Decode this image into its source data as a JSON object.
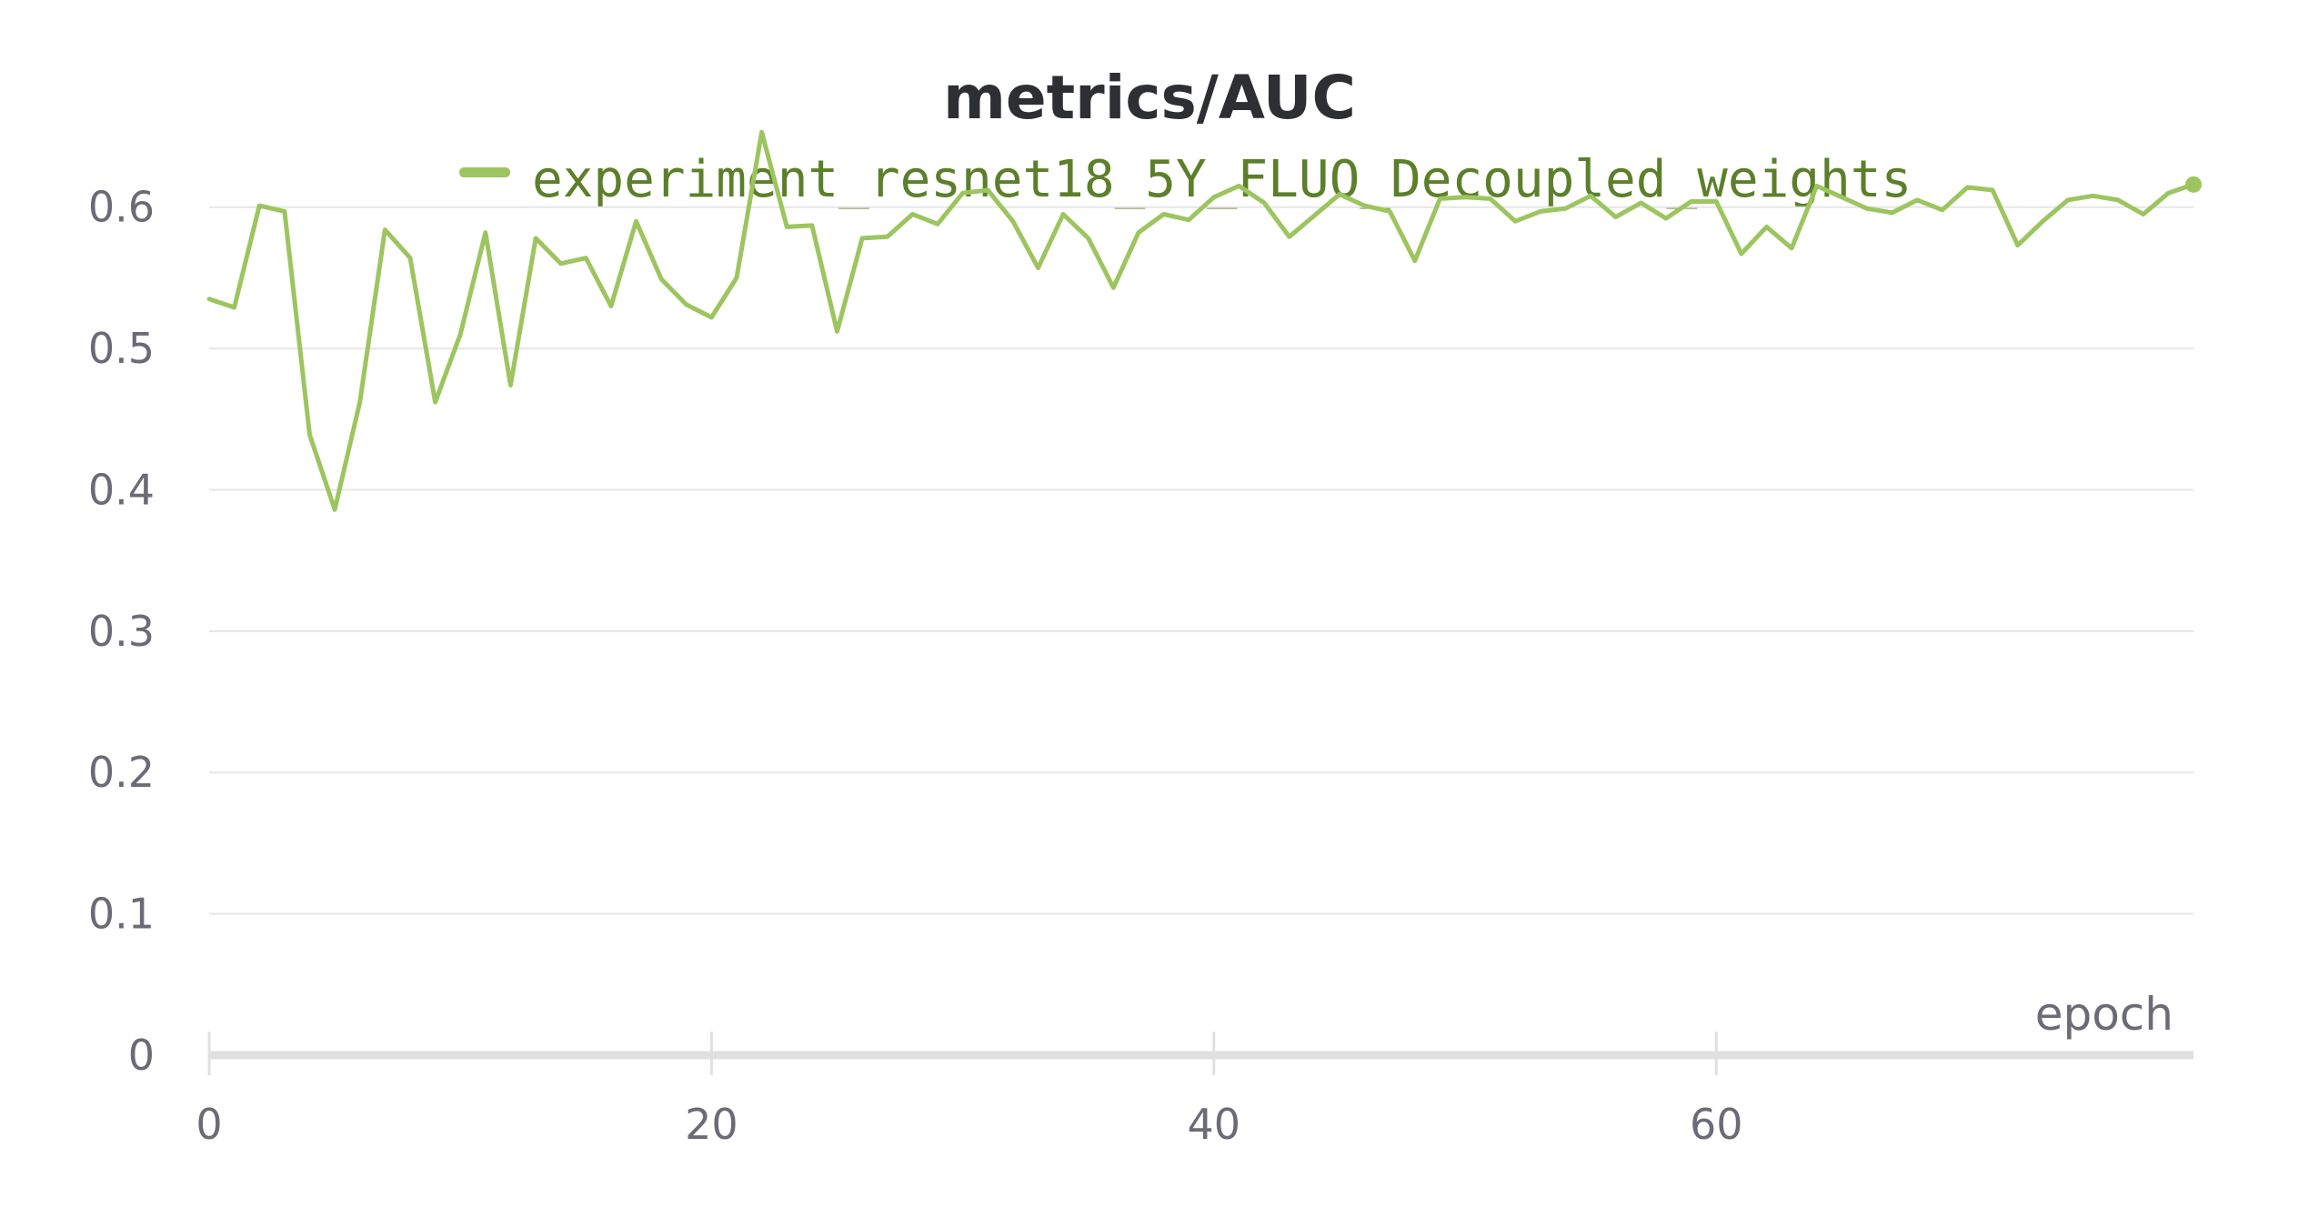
{
  "colors": {
    "series": "#9cc55f",
    "legend_text": "#5c7f2a",
    "grid": "#e6e6e6",
    "axis": "#e0e0e0",
    "tick_text": "#6b6b76",
    "title": "#2d2f33"
  },
  "chart_data": {
    "type": "line",
    "title": "metrics/AUC",
    "xlabel": "epoch",
    "ylabel": "",
    "xlim": [
      0,
      79
    ],
    "ylim": [
      0,
      0.65
    ],
    "x_ticks": [
      0,
      20,
      40,
      60
    ],
    "x_tick_labels": [
      "0",
      "20",
      "40",
      "60"
    ],
    "y_ticks": [
      0,
      0.1,
      0.2,
      0.3,
      0.4,
      0.5,
      0.6
    ],
    "y_tick_labels": [
      "0",
      "0.1",
      "0.2",
      "0.3",
      "0.4",
      "0.5",
      "0.6"
    ],
    "grid": true,
    "legend_position": "top-center",
    "series": [
      {
        "name": "experiment_resnet18_5Y_FLUO_Decoupled_weights",
        "x": [
          0,
          1,
          2,
          3,
          4,
          5,
          6,
          7,
          8,
          9,
          10,
          11,
          12,
          13,
          14,
          15,
          16,
          17,
          18,
          19,
          20,
          21,
          22,
          23,
          24,
          25,
          26,
          27,
          28,
          29,
          30,
          31,
          32,
          33,
          34,
          35,
          36,
          37,
          38,
          39,
          40,
          41,
          42,
          43,
          44,
          45,
          46,
          47,
          48,
          49,
          50,
          51,
          52,
          53,
          54,
          55,
          56,
          57,
          58,
          59,
          60,
          61,
          62,
          63,
          64,
          65,
          66,
          67,
          68,
          69,
          70,
          71,
          72,
          73,
          74,
          75,
          76,
          77,
          78,
          79
        ],
        "values": [
          0.535,
          0.529,
          0.601,
          0.597,
          0.439,
          0.386,
          0.462,
          0.584,
          0.564,
          0.462,
          0.51,
          0.582,
          0.474,
          0.578,
          0.56,
          0.564,
          0.53,
          0.59,
          0.549,
          0.531,
          0.522,
          0.55,
          0.653,
          0.586,
          0.587,
          0.512,
          0.578,
          0.579,
          0.595,
          0.588,
          0.61,
          0.612,
          0.59,
          0.557,
          0.595,
          0.578,
          0.543,
          0.582,
          0.595,
          0.591,
          0.607,
          0.615,
          0.603,
          0.579,
          0.594,
          0.609,
          0.601,
          0.597,
          0.562,
          0.606,
          0.607,
          0.606,
          0.59,
          0.597,
          0.599,
          0.608,
          0.593,
          0.603,
          0.592,
          0.604,
          0.604,
          0.567,
          0.586,
          0.571,
          0.615,
          0.607,
          0.599,
          0.596,
          0.605,
          0.598,
          0.614,
          0.612,
          0.573,
          0.59,
          0.605,
          0.608,
          0.605,
          0.595,
          0.61,
          0.616
        ]
      }
    ]
  }
}
